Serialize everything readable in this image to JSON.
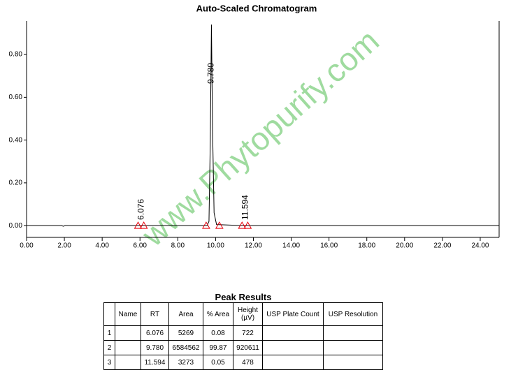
{
  "chart_data": {
    "type": "line",
    "title": "Auto-Scaled Chromatogram",
    "x": [
      0,
      1.85,
      1.95,
      2.05,
      2.2,
      5.95,
      6.076,
      6.2,
      9.55,
      9.65,
      9.72,
      9.78,
      9.84,
      9.92,
      10.05,
      11.45,
      11.594,
      11.7,
      25
    ],
    "series": [
      {
        "color": "#000000",
        "values": [
          0,
          0,
          -0.003,
          0.001,
          0,
          0,
          0.0007,
          0,
          0,
          0.02,
          0.4,
          0.94,
          0.45,
          0.06,
          0.005,
          0,
          0.0005,
          0,
          0
        ]
      }
    ],
    "xlim": [
      0,
      25
    ],
    "ylim": [
      -0.055,
      0.957
    ],
    "xticks": [
      {
        "value": 0,
        "label": "0.00"
      },
      {
        "value": 2,
        "label": "2.00"
      },
      {
        "value": 4,
        "label": "4.00"
      },
      {
        "value": 6,
        "label": "6.00"
      },
      {
        "value": 8,
        "label": "8.00"
      },
      {
        "value": 10,
        "label": "10.00"
      },
      {
        "value": 12,
        "label": "12.00"
      },
      {
        "value": 14,
        "label": "14.00"
      },
      {
        "value": 16,
        "label": "16.00"
      },
      {
        "value": 18,
        "label": "18.00"
      },
      {
        "value": 20,
        "label": "20.00"
      },
      {
        "value": 22,
        "label": "22.00"
      },
      {
        "value": 24,
        "label": "24.00"
      }
    ],
    "yticks": [
      {
        "value": 0,
        "label": "0.00"
      },
      {
        "value": 0.2,
        "label": "0.20"
      },
      {
        "value": 0.4,
        "label": "0.40"
      },
      {
        "value": 0.6,
        "label": "0.60"
      },
      {
        "value": 0.8,
        "label": "0.80"
      }
    ],
    "peak_labels": [
      {
        "value": 6.076,
        "label": "6.076"
      },
      {
        "value": 9.78,
        "label": "9.780"
      },
      {
        "value": 11.594,
        "label": "11.594"
      }
    ],
    "integration_markers": {
      "color": "#e8000b",
      "x": [
        5.9,
        6.2,
        9.5,
        10.2,
        11.4,
        11.7
      ]
    },
    "watermark": "www.Phytopurify.com"
  },
  "table": {
    "title": "Peak Results",
    "columns": [
      "",
      "Name",
      "RT",
      "Area",
      "% Area",
      "Height (µV)",
      "USP Plate Count",
      "USP Resolution"
    ],
    "rows": [
      [
        "1",
        "",
        "6.076",
        "5269",
        "0.08",
        "722",
        "",
        ""
      ],
      [
        "2",
        "",
        "9.780",
        "6584562",
        "99.87",
        "920611",
        "",
        ""
      ],
      [
        "3",
        "",
        "11.594",
        "3273",
        "0.05",
        "478",
        "",
        ""
      ]
    ]
  }
}
